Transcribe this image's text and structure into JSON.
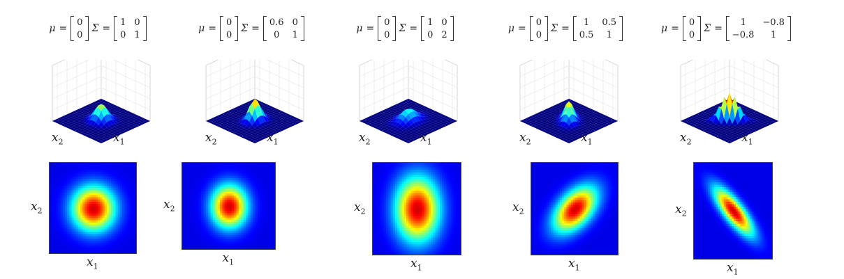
{
  "colors": {
    "background": "#ffffff",
    "colormap": [
      "#00007f",
      "#0000ff",
      "#00ffff",
      "#ffff00",
      "#ff0000",
      "#7f0000"
    ]
  },
  "symbols": {
    "mu": "μ",
    "equals": "=",
    "sigma": "Σ"
  },
  "axes": {
    "x1": "x",
    "x1_sub": "1",
    "x2": "x",
    "x2_sub": "2"
  },
  "panels": [
    {
      "mean": [
        "0",
        "0"
      ],
      "sigma": [
        [
          "1",
          "0"
        ],
        [
          "0",
          "1"
        ]
      ],
      "cov": [
        [
          1,
          0
        ],
        [
          0,
          1
        ]
      ]
    },
    {
      "mean": [
        "0",
        "0"
      ],
      "sigma": [
        [
          "0.6",
          "0"
        ],
        [
          "0",
          "1"
        ]
      ],
      "cov": [
        [
          0.6,
          0
        ],
        [
          0,
          1
        ]
      ]
    },
    {
      "mean": [
        "0",
        "0"
      ],
      "sigma": [
        [
          "1",
          "0"
        ],
        [
          "0",
          "2"
        ]
      ],
      "cov": [
        [
          1,
          0
        ],
        [
          0,
          2
        ]
      ]
    },
    {
      "mean": [
        "0",
        "0"
      ],
      "sigma": [
        [
          "1",
          "0.5"
        ],
        [
          "0.5",
          "1"
        ]
      ],
      "cov": [
        [
          1,
          0.5
        ],
        [
          0.5,
          1
        ]
      ]
    },
    {
      "mean": [
        "0",
        "0"
      ],
      "sigma": [
        [
          "1",
          "−0.8"
        ],
        [
          "−0.8",
          "1"
        ]
      ],
      "cov": [
        [
          1,
          -0.8
        ],
        [
          -0.8,
          1
        ]
      ]
    }
  ]
}
